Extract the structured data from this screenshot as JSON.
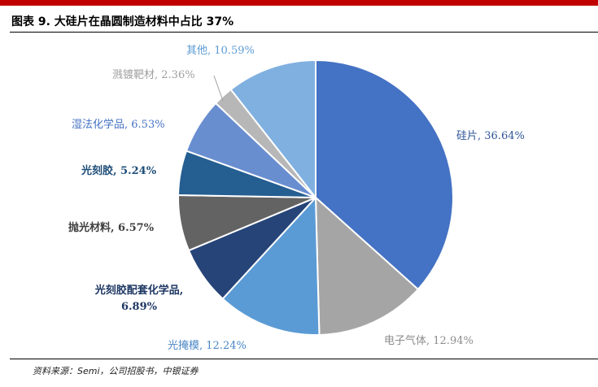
{
  "header": {
    "title": "图表 9. 大硅片在晶圆制造材料中占比 37%"
  },
  "footer": {
    "source": "资料来源：Semi，公司招股书，中银证券"
  },
  "chart_data": {
    "type": "pie",
    "title": "",
    "start_angle_deg": 0,
    "direction": "clockwise",
    "slices": [
      {
        "label": "硅片",
        "value": 36.64,
        "display": "硅片, 36.64%",
        "color": "#4472c4",
        "text_color": "#2f5597"
      },
      {
        "label": "电子气体",
        "value": 12.94,
        "display": "电子气体, 12.94%",
        "color": "#a5a5a5",
        "text_color": "#8c8c8c"
      },
      {
        "label": "光掩模",
        "value": 12.24,
        "display": "光掩模, 12.24%",
        "color": "#5b9bd5",
        "text_color": "#4a86c5"
      },
      {
        "label": "光刻胶配套化学品",
        "value": 6.89,
        "display": "光刻胶配套化学品, 6.89%",
        "color": "#264478",
        "text_color": "#1f3864"
      },
      {
        "label": "抛光材料",
        "value": 6.57,
        "display": "抛光材料, 6.57%",
        "color": "#636363",
        "text_color": "#3f3f3f"
      },
      {
        "label": "光刻胶",
        "value": 5.24,
        "display": "光刻胶, 5.24%",
        "color": "#255e91",
        "text_color": "#1f4e79"
      },
      {
        "label": "湿法化学品",
        "value": 6.53,
        "display": "湿法化学品, 6.53%",
        "color": "#698ed0",
        "text_color": "#4472c4"
      },
      {
        "label": "溅镀靶材",
        "value": 2.36,
        "display": "溅镀靶材, 2.36%",
        "color": "#b7b7b7",
        "text_color": "#a0a0a0"
      },
      {
        "label": "其他",
        "value": 10.59,
        "display": "其他, 10.59%",
        "color": "#7fb0e0",
        "text_color": "#5b9bd5"
      }
    ]
  }
}
